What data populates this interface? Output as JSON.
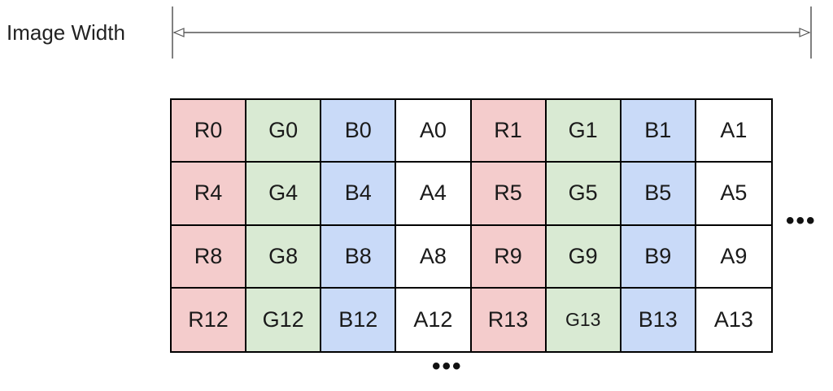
{
  "width_label": "Image Width",
  "colors": {
    "red": "#f4cccc",
    "green": "#d9ead3",
    "blue": "#c9daf8",
    "alpha": "#ffffff"
  },
  "grid": {
    "rows": [
      [
        "R0",
        "G0",
        "B0",
        "A0",
        "R1",
        "G1",
        "B1",
        "A1"
      ],
      [
        "R4",
        "G4",
        "B4",
        "A4",
        "R5",
        "G5",
        "B5",
        "A5"
      ],
      [
        "R8",
        "G8",
        "B8",
        "A8",
        "R9",
        "G9",
        "B9",
        "A9"
      ],
      [
        "R12",
        "G12",
        "B12",
        "A12",
        "R13",
        "G13",
        "B13",
        "A13"
      ]
    ]
  },
  "ellipsis_right": "•••",
  "ellipsis_bottom": "•••"
}
